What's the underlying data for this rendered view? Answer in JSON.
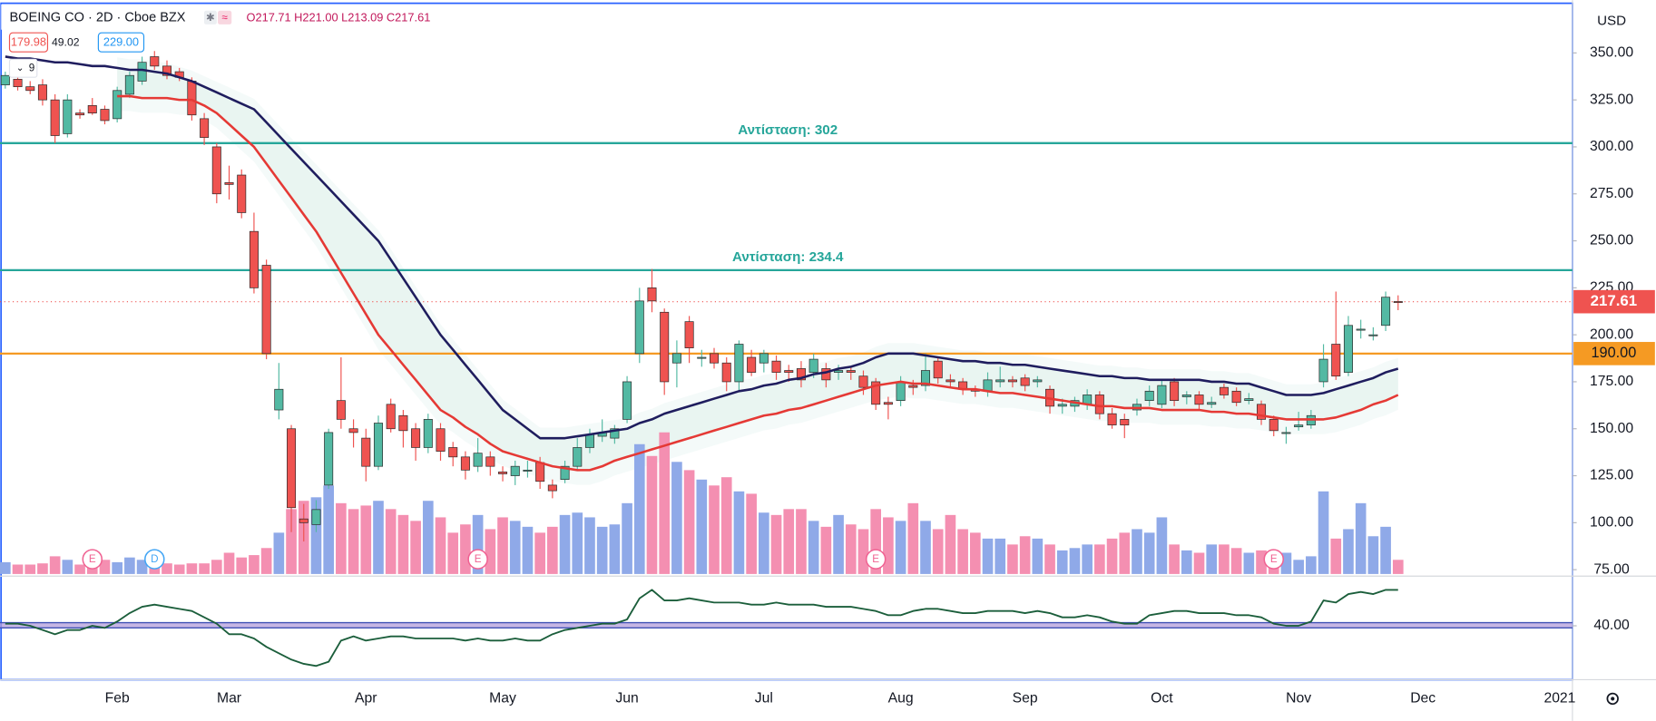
{
  "chart_data": {
    "type": "candlestick",
    "title": "BOEING CO · 2D · Cboe BZX",
    "ohlc_label": "O217.71 H221.00 L213.09 C217.61",
    "bid": "179.98",
    "spread": "49.02",
    "ask": "229.00",
    "indicator_length": 9,
    "y_unit": "USD",
    "ylim": [
      72.7,
      375.3
    ],
    "yticks": [
      {
        "value": 75,
        "label": "75.00"
      },
      {
        "value": 100,
        "label": "100.00"
      },
      {
        "value": 125,
        "label": "125.00"
      },
      {
        "value": 150,
        "label": "150.00"
      },
      {
        "value": 175,
        "label": "175.00"
      },
      {
        "value": 200,
        "label": "200.00"
      },
      {
        "value": 225,
        "label": "225.00"
      },
      {
        "value": 250,
        "label": "250.00"
      },
      {
        "value": 275,
        "label": "275.00"
      },
      {
        "value": 300,
        "label": "300.00"
      },
      {
        "value": 325,
        "label": "325.00"
      },
      {
        "value": 350,
        "label": "350.00"
      }
    ],
    "grid": false,
    "colors": {
      "up": "#53b9a3",
      "down": "#ef5350",
      "volume_up": "#8fa9e8",
      "volume_down": "#f48fb1"
    },
    "categories": [
      null,
      null,
      null,
      null,
      null,
      null,
      null,
      null,
      null,
      "Feb",
      null,
      null,
      null,
      null,
      null,
      null,
      null,
      null,
      "Mar",
      null,
      null,
      null,
      null,
      null,
      null,
      null,
      null,
      null,
      null,
      "Apr",
      null,
      null,
      null,
      null,
      null,
      null,
      null,
      null,
      null,
      null,
      "May",
      null,
      null,
      null,
      null,
      null,
      null,
      null,
      null,
      null,
      "Jun",
      null,
      null,
      null,
      null,
      null,
      null,
      null,
      null,
      null,
      null,
      "Jul",
      null,
      null,
      null,
      null,
      null,
      null,
      null,
      null,
      null,
      null,
      "Aug",
      null,
      null,
      null,
      null,
      null,
      null,
      null,
      null,
      null,
      "Sep",
      null,
      null,
      null,
      null,
      null,
      null,
      null,
      null,
      null,
      null,
      "Oct",
      null,
      null,
      null,
      null,
      null,
      null,
      null,
      null,
      null,
      null,
      "Nov",
      null,
      null,
      null,
      null,
      null,
      null,
      null,
      null,
      null,
      "Dec",
      null,
      null,
      null,
      null,
      null,
      null,
      null,
      null,
      null,
      null,
      "2021"
    ],
    "candles": [
      [
        333,
        340,
        331,
        338
      ],
      [
        336,
        338,
        330,
        332
      ],
      [
        332,
        335,
        328,
        330
      ],
      [
        333,
        336,
        322,
        325
      ],
      [
        325,
        328,
        302,
        306
      ],
      [
        307,
        328,
        305,
        325
      ],
      [
        318,
        320,
        315,
        317
      ],
      [
        322,
        326,
        317,
        318
      ],
      [
        320,
        322,
        312,
        314
      ],
      [
        315,
        332,
        313,
        330
      ],
      [
        328,
        340,
        326,
        338
      ],
      [
        335,
        348,
        333,
        345
      ],
      [
        348,
        351,
        341,
        343
      ],
      [
        343,
        346,
        336,
        338
      ],
      [
        340,
        342,
        335,
        337
      ],
      [
        335,
        337,
        314,
        317
      ],
      [
        315,
        318,
        301,
        305
      ],
      [
        300,
        302,
        270,
        275
      ],
      [
        281,
        290,
        272,
        280
      ],
      [
        285,
        288,
        262,
        265
      ],
      [
        255,
        265,
        222,
        225
      ],
      [
        237,
        240,
        187,
        190
      ],
      [
        160,
        185,
        155,
        171
      ],
      [
        150,
        152,
        95,
        108
      ],
      [
        102,
        110,
        90,
        100
      ],
      [
        99,
        112,
        95,
        107
      ],
      [
        120,
        150,
        118,
        148
      ],
      [
        165,
        188,
        150,
        155
      ],
      [
        150,
        155,
        140,
        148
      ],
      [
        145,
        150,
        122,
        130
      ],
      [
        130,
        157,
        128,
        153
      ],
      [
        163,
        166,
        148,
        150
      ],
      [
        157,
        160,
        140,
        149
      ],
      [
        150,
        153,
        133,
        140
      ],
      [
        140,
        158,
        137,
        155
      ],
      [
        150,
        153,
        133,
        138
      ],
      [
        140,
        143,
        130,
        135
      ],
      [
        135,
        138,
        123,
        128
      ],
      [
        130,
        145,
        127,
        137
      ],
      [
        135,
        138,
        125,
        130
      ],
      [
        127,
        130,
        122,
        126
      ],
      [
        125,
        133,
        120,
        130
      ],
      [
        128,
        133,
        124,
        128
      ],
      [
        132,
        135,
        118,
        122
      ],
      [
        120,
        123,
        113,
        117
      ],
      [
        123,
        133,
        121,
        130
      ],
      [
        130,
        145,
        128,
        140
      ],
      [
        140,
        150,
        137,
        147
      ],
      [
        146,
        155,
        143,
        148
      ],
      [
        145,
        152,
        142,
        150
      ],
      [
        155,
        178,
        153,
        175
      ],
      [
        190,
        225,
        185,
        218
      ],
      [
        225,
        235,
        212,
        218
      ],
      [
        212,
        214,
        168,
        175
      ],
      [
        185,
        197,
        172,
        190
      ],
      [
        207,
        210,
        185,
        193
      ],
      [
        188,
        192,
        183,
        188
      ],
      [
        190,
        193,
        182,
        185
      ],
      [
        185,
        188,
        170,
        175
      ],
      [
        175,
        197,
        170,
        195
      ],
      [
        188,
        192,
        178,
        180
      ],
      [
        185,
        192,
        180,
        190
      ],
      [
        186,
        189,
        176,
        180
      ],
      [
        181,
        184,
        175,
        180
      ],
      [
        182,
        186,
        172,
        176
      ],
      [
        180,
        190,
        177,
        187
      ],
      [
        182,
        185,
        172,
        176
      ],
      [
        180,
        184,
        176,
        181
      ],
      [
        181,
        183,
        176,
        180
      ],
      [
        178,
        181,
        168,
        172
      ],
      [
        175,
        177,
        160,
        163
      ],
      [
        164,
        167,
        155,
        163
      ],
      [
        165,
        178,
        162,
        175
      ],
      [
        173,
        176,
        168,
        172
      ],
      [
        173,
        190,
        170,
        181
      ],
      [
        186,
        188,
        174,
        177
      ],
      [
        176,
        179,
        172,
        175
      ],
      [
        175,
        177,
        168,
        171
      ],
      [
        171,
        173,
        167,
        170
      ],
      [
        170,
        180,
        167,
        176
      ],
      [
        175,
        183,
        172,
        176
      ],
      [
        176,
        178,
        172,
        175
      ],
      [
        177,
        179,
        170,
        173
      ],
      [
        175,
        178,
        172,
        176
      ],
      [
        171,
        173,
        158,
        162
      ],
      [
        162,
        166,
        158,
        163
      ],
      [
        162,
        167,
        159,
        165
      ],
      [
        163,
        171,
        160,
        168
      ],
      [
        168,
        170,
        155,
        158
      ],
      [
        158,
        161,
        150,
        152
      ],
      [
        155,
        158,
        145,
        152
      ],
      [
        160,
        166,
        157,
        163
      ],
      [
        165,
        173,
        162,
        170
      ],
      [
        163,
        176,
        161,
        173
      ],
      [
        175,
        177,
        162,
        165
      ],
      [
        167,
        170,
        163,
        168
      ],
      [
        168,
        170,
        160,
        163
      ],
      [
        163,
        167,
        161,
        164
      ],
      [
        172,
        174,
        166,
        168
      ],
      [
        170,
        172,
        162,
        164
      ],
      [
        165,
        169,
        163,
        166
      ],
      [
        163,
        165,
        152,
        155
      ],
      [
        155,
        157,
        146,
        149
      ],
      [
        148,
        151,
        142,
        148
      ],
      [
        151,
        159,
        149,
        152
      ],
      [
        152,
        160,
        150,
        157
      ],
      [
        175,
        195,
        172,
        187
      ],
      [
        195,
        223,
        176,
        178
      ],
      [
        180,
        210,
        178,
        205
      ],
      [
        203,
        208,
        198,
        203
      ],
      [
        200,
        204,
        197,
        200
      ],
      [
        205,
        223,
        202,
        220
      ],
      [
        217.71,
        221,
        213.09,
        217.61
      ],
      null,
      null,
      null,
      null,
      null,
      null,
      null,
      null,
      null,
      null,
      null,
      null,
      null
    ],
    "volumes": [
      10,
      8,
      8,
      9,
      15,
      12,
      8,
      10,
      12,
      10,
      14,
      12,
      10,
      9,
      8,
      9,
      9,
      12,
      18,
      14,
      16,
      22,
      35,
      55,
      62,
      65,
      75,
      60,
      55,
      58,
      62,
      55,
      50,
      45,
      62,
      48,
      35,
      42,
      50,
      38,
      48,
      45,
      40,
      35,
      40,
      50,
      52,
      48,
      40,
      42,
      60,
      110,
      100,
      120,
      95,
      88,
      80,
      75,
      82,
      70,
      68,
      52,
      50,
      55,
      55,
      45,
      40,
      50,
      42,
      38,
      55,
      48,
      45,
      60,
      45,
      38,
      50,
      38,
      35,
      30,
      30,
      25,
      32,
      30,
      25,
      20,
      22,
      25,
      25,
      30,
      35,
      38,
      35,
      48,
      25,
      20,
      18,
      25,
      25,
      22,
      18,
      20,
      20,
      18,
      12,
      15,
      70,
      30,
      38,
      60,
      32,
      40,
      12,
      null,
      null,
      null,
      null,
      null,
      null,
      null,
      null,
      null,
      null,
      null,
      null,
      null
    ],
    "ma": [
      {
        "color": "#1f1d5e",
        "values": [
          348,
          347,
          347,
          346,
          345,
          345,
          344,
          343,
          343,
          342,
          341,
          341,
          340,
          339,
          337,
          335,
          332,
          329,
          326,
          323,
          320,
          313,
          306,
          299,
          292,
          285,
          278,
          271,
          264,
          257,
          250,
          240,
          230,
          220,
          210,
          200,
          192,
          184,
          176,
          168,
          160,
          155,
          150,
          145,
          145,
          145,
          146,
          147,
          148,
          149,
          150,
          153,
          155,
          158,
          160,
          162,
          164,
          166,
          168,
          170,
          171,
          173,
          174,
          176,
          177,
          179,
          180,
          182,
          183,
          185,
          188,
          190,
          190,
          190,
          189,
          188,
          187,
          186,
          186,
          185,
          185,
          184,
          184,
          183,
          182,
          181,
          180,
          179,
          178,
          178,
          177,
          177,
          176,
          176,
          176,
          176,
          176,
          175,
          175,
          174,
          174,
          172,
          170,
          168,
          168,
          168,
          169,
          171,
          173,
          175,
          177,
          180,
          182,
          null,
          null,
          null,
          null,
          null,
          null,
          null,
          null,
          null,
          null,
          null,
          null,
          null
        ]
      },
      {
        "color": "#e53935",
        "values": [
          null,
          null,
          null,
          null,
          null,
          null,
          null,
          null,
          null,
          327,
          327,
          326,
          326,
          326,
          325,
          325,
          322,
          318,
          312,
          306,
          300,
          291,
          282,
          273,
          264,
          255,
          244,
          233,
          222,
          211,
          200,
          192,
          184,
          176,
          168,
          160,
          156,
          151,
          147,
          142,
          138,
          136,
          134,
          132,
          130,
          129,
          128,
          128,
          130,
          133,
          135,
          137,
          139,
          141,
          143,
          145,
          147,
          149,
          151,
          153,
          155,
          157,
          158,
          160,
          161,
          163,
          165,
          167,
          169,
          171,
          173,
          174,
          175,
          174,
          174,
          173,
          172,
          171,
          171,
          170,
          169,
          169,
          168,
          167,
          166,
          165,
          164,
          163,
          162,
          162,
          161,
          161,
          161,
          160,
          160,
          160,
          160,
          159,
          159,
          158,
          158,
          157,
          156,
          155,
          155,
          155,
          155,
          156,
          158,
          160,
          163,
          165,
          168,
          null,
          null,
          null,
          null,
          null,
          null,
          null,
          null,
          null,
          null,
          null,
          null,
          null
        ]
      }
    ],
    "oscillator": {
      "color": "#1b5e3b",
      "lim": [
        15,
        62
      ],
      "ticks": [
        {
          "value": 40,
          "label": "40.00"
        }
      ],
      "band": [
        39,
        41.5
      ],
      "values": [
        41,
        41,
        40,
        38,
        36,
        38,
        38,
        40,
        39,
        42,
        46,
        49,
        50,
        49,
        48,
        47,
        44,
        41,
        36,
        36,
        34,
        30,
        27,
        24,
        22,
        21,
        23,
        33,
        35,
        33,
        34,
        35,
        35,
        34,
        34,
        34,
        34,
        33,
        34,
        33,
        33,
        34,
        33,
        33,
        36,
        38,
        39,
        40,
        41,
        41,
        43,
        53,
        57,
        52,
        52,
        53,
        52,
        51,
        51,
        51,
        50,
        50,
        51,
        50,
        50,
        50,
        49,
        49,
        49,
        48,
        47,
        45,
        45,
        47,
        48,
        48,
        47,
        46,
        46,
        47,
        47,
        47,
        46,
        47,
        46,
        44,
        44,
        45,
        44,
        42,
        41,
        41,
        45,
        46,
        47,
        47,
        46,
        46,
        46,
        45,
        45,
        44,
        41,
        40,
        40,
        42,
        52,
        51,
        55,
        56,
        55,
        57,
        57,
        null,
        null,
        null,
        null,
        null,
        null,
        null,
        null,
        null,
        null,
        null,
        null,
        null
      ]
    },
    "levels": [
      {
        "value": 302,
        "label": "Αντίσταση: 302",
        "color": "#26a69a"
      },
      {
        "value": 234.4,
        "label": "Αντίσταση: 234.4",
        "color": "#26a69a"
      },
      {
        "value": 190,
        "axis_label": "190.00",
        "color": "#f59a23"
      }
    ],
    "last": {
      "value": 217.61,
      "label": "217.61",
      "color": "#ef5350"
    },
    "events": [
      null,
      null,
      null,
      null,
      null,
      null,
      null,
      {
        "label": "E",
        "color": "#f06292"
      },
      null,
      null,
      null,
      null,
      {
        "label": "D",
        "color": "#42a5f5"
      },
      null,
      null,
      null,
      null,
      null,
      null,
      null,
      null,
      null,
      null,
      null,
      null,
      null,
      null,
      null,
      null,
      null,
      null,
      null,
      null,
      null,
      null,
      null,
      null,
      null,
      {
        "label": "E",
        "color": "#f06292"
      },
      null,
      null,
      null,
      null,
      null,
      null,
      null,
      null,
      null,
      null,
      null,
      null,
      null,
      null,
      null,
      null,
      null,
      null,
      null,
      null,
      null,
      null,
      null,
      null,
      null,
      null,
      null,
      null,
      null,
      null,
      null,
      {
        "label": "E",
        "color": "#f06292"
      },
      null,
      null,
      null,
      null,
      null,
      null,
      null,
      null,
      null,
      null,
      null,
      null,
      null,
      null,
      null,
      null,
      null,
      null,
      null,
      null,
      null,
      null,
      null,
      null,
      null,
      null,
      null,
      null,
      null,
      null,
      null,
      {
        "label": "E",
        "color": "#f06292"
      },
      null,
      null,
      null,
      null,
      null,
      null,
      null,
      null,
      null,
      null,
      null,
      null,
      null,
      null,
      null,
      null,
      null,
      null,
      null,
      null,
      null,
      null,
      null
    ]
  }
}
